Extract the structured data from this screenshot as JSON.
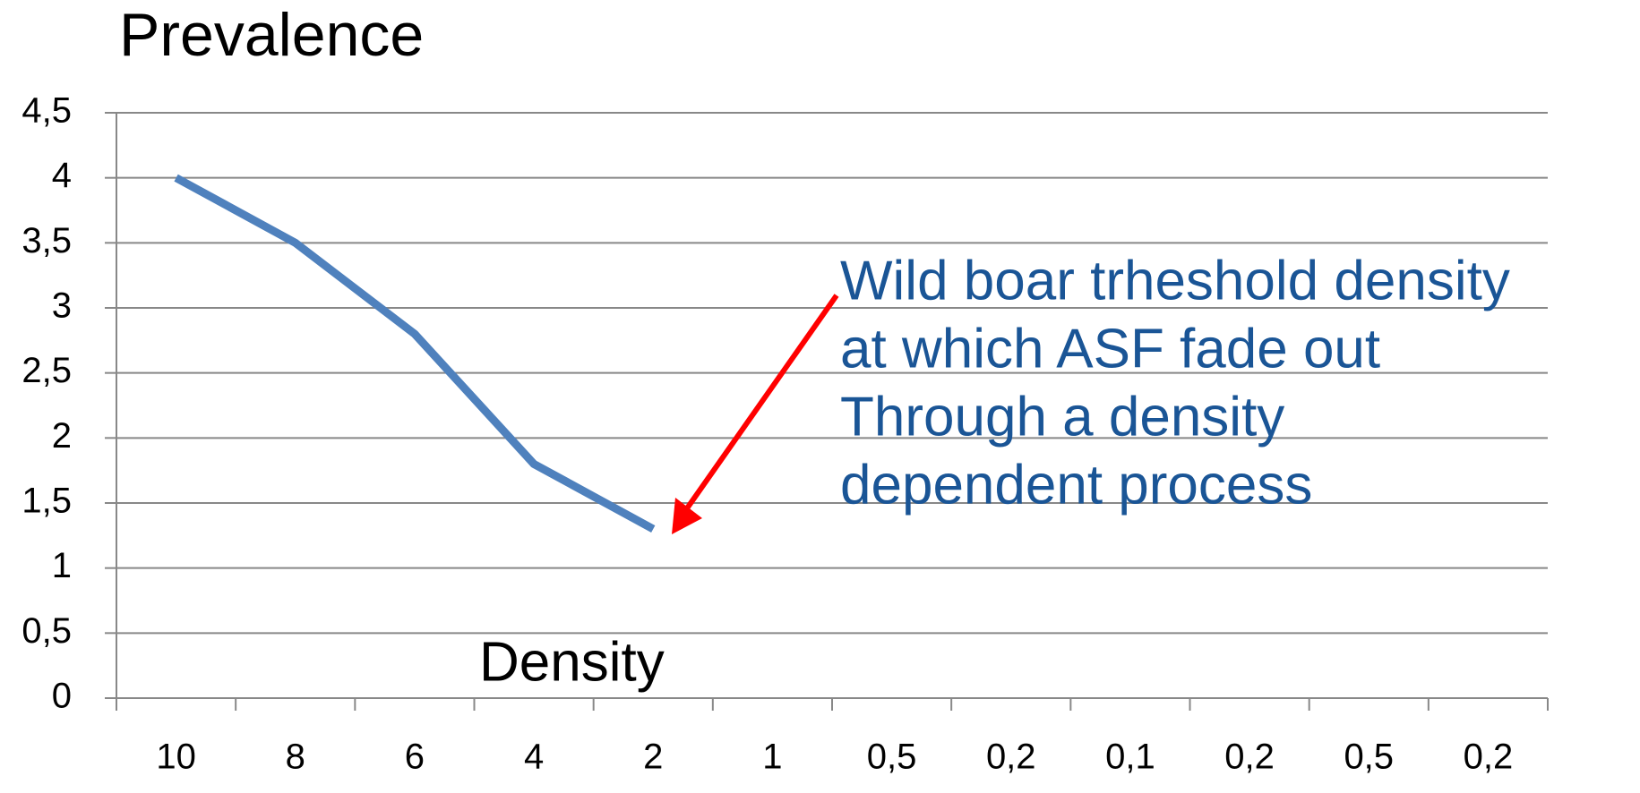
{
  "chart_data": {
    "type": "line",
    "title": "Prevalence",
    "x_label": "Density",
    "categories": [
      "10",
      "8",
      "6",
      "4",
      "2",
      "1",
      "0,5",
      "0,2",
      "0,1",
      "0,2",
      "0,5",
      "0,2"
    ],
    "series": [
      {
        "name": "Prevalence",
        "color": "#4f81bd",
        "values": [
          4,
          3.5,
          2.8,
          1.8,
          1.3,
          null,
          null,
          null,
          null,
          null,
          null,
          null
        ]
      }
    ],
    "ylim": [
      0,
      4.5
    ],
    "yticks": [
      0,
      {
        "value": 0.5,
        "label": "0,5"
      },
      1,
      {
        "value": 1.5,
        "label": "1,5"
      },
      2,
      {
        "value": 2.5,
        "label": "2,5"
      },
      3,
      {
        "value": 3.5,
        "label": "3,5"
      },
      4,
      {
        "value": 4.5,
        "label": "4,5"
      }
    ],
    "grid": true,
    "annotation": {
      "lines": [
        "Wild boar trheshold density",
        "at which ASF fade out",
        "Through a density",
        "dependent process"
      ],
      "color": "#1a5596",
      "arrow_color": "#ff0000"
    }
  }
}
